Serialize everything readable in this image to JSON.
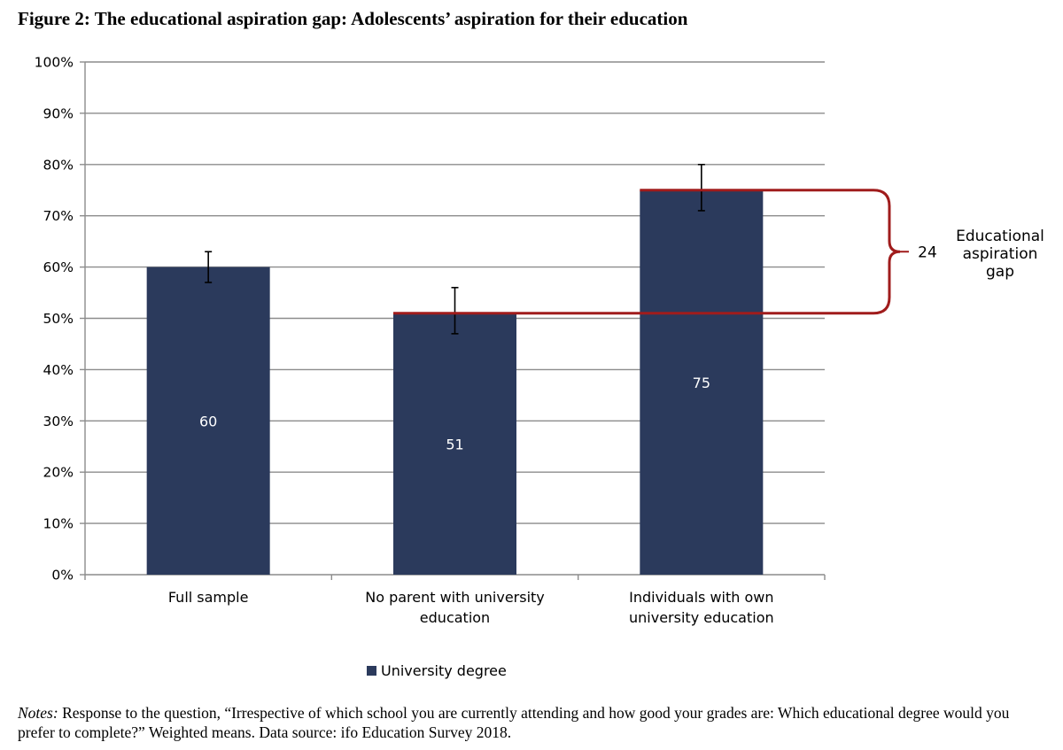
{
  "figure": {
    "title": "Figure 2: The educational aspiration gap: Adolescents’ aspiration for their education"
  },
  "chart_data": {
    "type": "bar",
    "title": "",
    "xlabel": "",
    "ylabel": "",
    "ylim": [
      0,
      100
    ],
    "yticks": [
      "0%",
      "10%",
      "20%",
      "30%",
      "40%",
      "50%",
      "60%",
      "70%",
      "80%",
      "90%",
      "100%"
    ],
    "grid": true,
    "categories": [
      [
        "Full sample"
      ],
      [
        "No parent with university",
        "education"
      ],
      [
        "Individuals with own",
        "university education"
      ]
    ],
    "series": [
      {
        "name": "University degree",
        "color": "#2b3a5c",
        "values": [
          60,
          51,
          75
        ],
        "error_low": [
          57,
          47,
          71
        ],
        "error_high": [
          63,
          56,
          80
        ]
      }
    ],
    "data_labels": [
      "60",
      "51",
      "75"
    ],
    "legend_position": "bottom",
    "annotation": {
      "value": "24",
      "label_lines": [
        "Educational",
        "aspiration",
        "gap"
      ],
      "from_category": 1,
      "to_category": 2,
      "color": "#a01c1c"
    }
  },
  "notes": {
    "label": "Notes:",
    "text": " Response to the question, “Irrespective of which school you are currently attending and how good your grades are: Which educational degree would you prefer to complete?” Weighted means. Data source: ifo Education Survey 2018."
  }
}
